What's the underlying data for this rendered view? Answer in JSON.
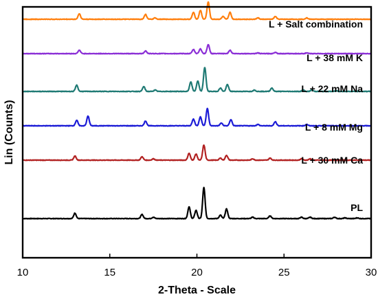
{
  "chart_data": {
    "type": "line",
    "xlabel": "2-Theta - Scale",
    "ylabel": "Lin (Counts)",
    "xlim": [
      10,
      30
    ],
    "xticks": [
      10,
      15,
      20,
      25,
      30
    ],
    "yticks_shown": false,
    "grid": false,
    "legend": "inline labels at right of each trace",
    "series": [
      {
        "name": "PL",
        "color": "#000000",
        "offset": 0,
        "peaks": [
          [
            13.0,
            8
          ],
          [
            16.85,
            6
          ],
          [
            17.5,
            2
          ],
          [
            19.55,
            17
          ],
          [
            19.95,
            12
          ],
          [
            20.4,
            45
          ],
          [
            21.35,
            5
          ],
          [
            21.7,
            14
          ],
          [
            23.2,
            2
          ],
          [
            24.2,
            4
          ],
          [
            26.0,
            2
          ],
          [
            26.5,
            2
          ],
          [
            27.9,
            2
          ],
          [
            28.5,
            1
          ],
          [
            29.2,
            1
          ]
        ]
      },
      {
        "name": "L + 30 mM Ca",
        "color": "#b22222",
        "offset": 85,
        "peaks": [
          [
            13.0,
            6
          ],
          [
            16.85,
            5
          ],
          [
            17.5,
            2
          ],
          [
            19.55,
            10
          ],
          [
            19.95,
            9
          ],
          [
            20.4,
            22
          ],
          [
            21.35,
            3
          ],
          [
            21.7,
            7
          ],
          [
            23.2,
            2
          ],
          [
            24.2,
            3
          ],
          [
            26.0,
            2
          ],
          [
            26.5,
            2
          ]
        ]
      },
      {
        "name": "L + 8 mM Mg",
        "color": "#1c1cd6",
        "offset": 135,
        "peaks": [
          [
            13.1,
            8
          ],
          [
            13.75,
            14
          ],
          [
            17.05,
            7
          ],
          [
            19.8,
            10
          ],
          [
            20.2,
            13
          ],
          [
            20.6,
            25
          ],
          [
            21.4,
            4
          ],
          [
            21.95,
            9
          ],
          [
            23.5,
            2
          ],
          [
            24.5,
            6
          ],
          [
            26.3,
            2
          ]
        ]
      },
      {
        "name": "L + 22 mM Na",
        "color": "#1f7a74",
        "offset": 185,
        "peaks": [
          [
            13.1,
            9
          ],
          [
            16.95,
            7
          ],
          [
            17.6,
            2
          ],
          [
            19.65,
            14
          ],
          [
            20.05,
            15
          ],
          [
            20.45,
            35
          ],
          [
            21.35,
            5
          ],
          [
            21.75,
            10
          ],
          [
            23.3,
            2
          ],
          [
            24.3,
            5
          ],
          [
            26.1,
            2
          ],
          [
            26.6,
            2
          ],
          [
            28.0,
            1
          ]
        ]
      },
      {
        "name": "L + 38 mM K",
        "color": "#8b2fd6",
        "offset": 240,
        "peaks": [
          [
            13.25,
            5
          ],
          [
            17.05,
            4
          ],
          [
            19.8,
            6
          ],
          [
            20.2,
            7
          ],
          [
            20.65,
            13
          ],
          [
            21.9,
            5
          ],
          [
            23.5,
            1
          ],
          [
            24.5,
            2
          ],
          [
            26.3,
            1
          ]
        ]
      },
      {
        "name": "L + Salt combination",
        "color": "#ff7f0e",
        "offset": 290,
        "peaks": [
          [
            13.25,
            8
          ],
          [
            17.05,
            7
          ],
          [
            17.6,
            2
          ],
          [
            19.8,
            10
          ],
          [
            20.2,
            13
          ],
          [
            20.65,
            25
          ],
          [
            21.5,
            4
          ],
          [
            21.9,
            10
          ],
          [
            23.5,
            2
          ],
          [
            24.5,
            4
          ],
          [
            26.3,
            2
          ]
        ]
      }
    ]
  }
}
